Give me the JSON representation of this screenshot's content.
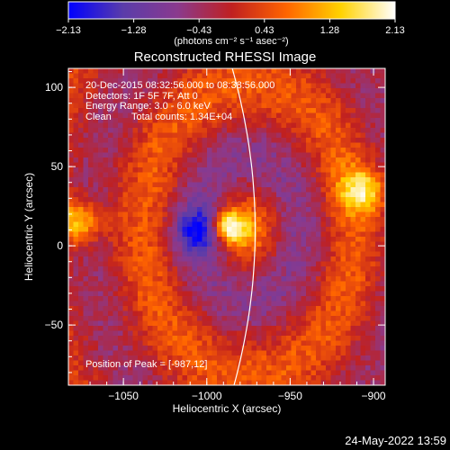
{
  "chart_data": {
    "type": "heatmap",
    "title": "Reconstructed RHESSI Image",
    "xlabel": "Heliocentric X (arcsec)",
    "ylabel": "Heliocentric Y (arcsec)",
    "xlim": [
      -1083,
      -893
    ],
    "ylim": [
      -88,
      112
    ],
    "xticks": [
      "−1050",
      "−1000",
      "−950",
      "−900"
    ],
    "xtick_values": [
      -1050,
      -1000,
      -950,
      -900
    ],
    "yticks": [
      "−50",
      "0",
      "50",
      "100"
    ],
    "ytick_values": [
      -50,
      0,
      50,
      100
    ],
    "colorbar": {
      "range": [
        -2.13,
        2.13
      ],
      "ticks": [
        "−2.13",
        "−1.28",
        "−0.43",
        "0.43",
        "1.28",
        "2.13"
      ],
      "unit_label": "(photons cm⁻² s⁻¹ asec⁻²)",
      "colors": [
        "#0000ff",
        "#5a3caa",
        "#8a3a8e",
        "#c02020",
        "#ff6400",
        "#ffd200",
        "#ffffff"
      ]
    },
    "info": {
      "time": "20-Dec-2015 08:32:56.000 to 08:38:56.000",
      "detectors": "Detectors: 1F 5F 7F, Att 0",
      "energy": "Energy Range: 3.0 - 6.0 keV",
      "method": "Clean",
      "counts": "Total counts: 1.34E+04"
    },
    "peak_label": "Position of Peak = [-987,12]",
    "peak": [
      -987,
      12
    ],
    "limb_line_color": "#ffffff",
    "features": [
      {
        "kind": "peak",
        "x": -987,
        "y": 12,
        "value": 2.1
      },
      {
        "kind": "blob",
        "x": -1077,
        "y": 15,
        "value": 1.6
      },
      {
        "kind": "blob",
        "x": -907,
        "y": 35,
        "value": 1.5
      },
      {
        "kind": "blob",
        "x": -1005,
        "y": 10,
        "value": -1.6
      },
      {
        "kind": "ring",
        "x": -975,
        "y": 10,
        "value": 0.9
      }
    ]
  },
  "footer": {
    "date": "24-May-2022 13:59"
  }
}
